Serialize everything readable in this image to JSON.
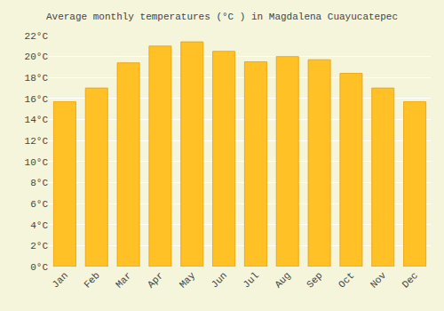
{
  "chart_data": {
    "type": "bar",
    "title": "Average monthly temperatures (°C ) in Magdalena Cuayucatepec",
    "categories": [
      "Jan",
      "Feb",
      "Mar",
      "Apr",
      "May",
      "Jun",
      "Jul",
      "Aug",
      "Sep",
      "Oct",
      "Nov",
      "Dec"
    ],
    "values": [
      15.7,
      17.0,
      19.4,
      21.0,
      21.4,
      20.5,
      19.5,
      20.0,
      19.7,
      18.4,
      17.0,
      15.7
    ],
    "color": "#FFC125",
    "ylim": [
      0,
      22
    ],
    "yticks": [
      {
        "value": 0,
        "label": "0°C"
      },
      {
        "value": 2,
        "label": "2°C"
      },
      {
        "value": 4,
        "label": "4°C"
      },
      {
        "value": 6,
        "label": "6°C"
      },
      {
        "value": 8,
        "label": "8°C"
      },
      {
        "value": 10,
        "label": "10°C"
      },
      {
        "value": 12,
        "label": "12°C"
      },
      {
        "value": 14,
        "label": "14°C"
      },
      {
        "value": 16,
        "label": "16°C"
      },
      {
        "value": 18,
        "label": "18°C"
      },
      {
        "value": 20,
        "label": "20°C"
      },
      {
        "value": 22,
        "label": "22°C"
      }
    ],
    "grid": true
  }
}
